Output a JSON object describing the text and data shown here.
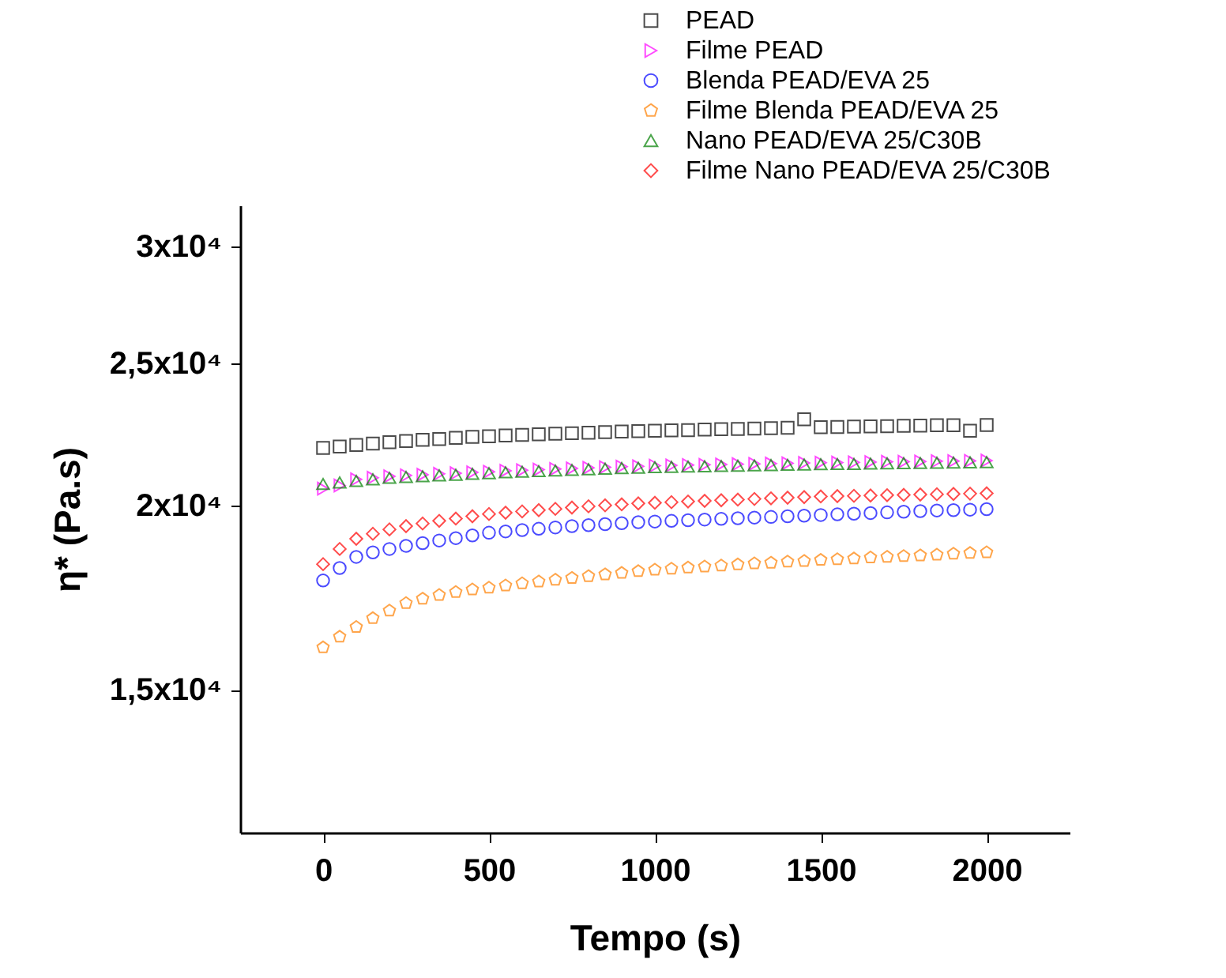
{
  "chart_data": {
    "type": "scatter",
    "xlabel": "Tempo (s)",
    "ylabel": "η* (Pa.s)",
    "log": "y",
    "xlim": [
      -250,
      2250
    ],
    "xticks": [
      0,
      500,
      1000,
      1500,
      2000
    ],
    "ylim": [
      12000,
      32000
    ],
    "yticks": [
      {
        "value": 15000,
        "label": "1,5x10⁴"
      },
      {
        "value": 20000,
        "label": "2x10⁴"
      },
      {
        "value": 25000,
        "label": "2,5x10⁴"
      },
      {
        "value": 30000,
        "label": "3x10⁴"
      }
    ],
    "grid": false,
    "legend": "top right",
    "x": [
      0,
      50,
      100,
      150,
      200,
      250,
      300,
      350,
      400,
      450,
      500,
      550,
      600,
      650,
      700,
      750,
      800,
      850,
      900,
      950,
      1000,
      1050,
      1100,
      1150,
      1200,
      1250,
      1300,
      1350,
      1400,
      1450,
      1500,
      1550,
      1600,
      1650,
      1700,
      1750,
      1800,
      1850,
      1900,
      1950,
      2000
    ],
    "series": [
      {
        "name": "PEAD",
        "color": "#000000",
        "marker": "square",
        "values": [
          21900,
          21950,
          22000,
          22050,
          22100,
          22140,
          22180,
          22210,
          22250,
          22280,
          22300,
          22330,
          22350,
          22370,
          22390,
          22410,
          22430,
          22450,
          22470,
          22480,
          22500,
          22510,
          22520,
          22540,
          22550,
          22560,
          22570,
          22590,
          22600,
          22900,
          22620,
          22630,
          22640,
          22650,
          22660,
          22670,
          22680,
          22690,
          22690,
          22500,
          22700
        ]
      },
      {
        "name": "Filme PEAD",
        "color": "#ff00ff",
        "marker": "triangle-right",
        "values": [
          20550,
          20650,
          20850,
          20900,
          20950,
          20980,
          21000,
          21030,
          21050,
          21080,
          21100,
          21130,
          21150,
          21170,
          21190,
          21210,
          21230,
          21250,
          21270,
          21280,
          21300,
          21310,
          21320,
          21330,
          21340,
          21350,
          21360,
          21370,
          21380,
          21390,
          21400,
          21405,
          21410,
          21420,
          21430,
          21435,
          21440,
          21450,
          21455,
          21460,
          21470
        ]
      },
      {
        "name": "Blenda PEAD/EVA 25",
        "color": "#0000ff",
        "marker": "circle",
        "values": [
          17800,
          18150,
          18470,
          18600,
          18700,
          18790,
          18870,
          18950,
          19020,
          19100,
          19180,
          19220,
          19260,
          19300,
          19340,
          19380,
          19410,
          19440,
          19470,
          19500,
          19520,
          19540,
          19560,
          19580,
          19600,
          19620,
          19640,
          19660,
          19680,
          19700,
          19720,
          19740,
          19760,
          19780,
          19800,
          19820,
          19840,
          19860,
          19870,
          19885,
          19900
        ]
      },
      {
        "name": "Filme Blenda PEAD/EVA 25",
        "color": "#ff8000",
        "values": [
          16030,
          16300,
          16550,
          16780,
          16980,
          17180,
          17300,
          17400,
          17480,
          17550,
          17600,
          17660,
          17720,
          17770,
          17820,
          17870,
          17920,
          17970,
          18010,
          18060,
          18100,
          18130,
          18160,
          18190,
          18220,
          18250,
          18280,
          18300,
          18330,
          18350,
          18380,
          18400,
          18420,
          18450,
          18470,
          18490,
          18510,
          18530,
          18560,
          18580,
          18600
        ]
      },
      {
        "name": "Nano PEAD/EVA 25/C30B",
        "color": "#008000",
        "marker": "triangle",
        "values": [
          20700,
          20750,
          20800,
          20850,
          20900,
          20930,
          20950,
          20980,
          21000,
          21030,
          21050,
          21080,
          21100,
          21120,
          21140,
          21160,
          21180,
          21200,
          21220,
          21230,
          21250,
          21260,
          21270,
          21280,
          21290,
          21300,
          21310,
          21320,
          21330,
          21340,
          21350,
          21355,
          21360,
          21370,
          21380,
          21385,
          21390,
          21400,
          21405,
          21410,
          21420
        ]
      },
      {
        "name": "Filme Nano PEAD/EVA 25/C30B",
        "color": "#ff0000",
        "marker": "diamond",
        "values": [
          18260,
          18700,
          19000,
          19150,
          19280,
          19380,
          19460,
          19540,
          19610,
          19680,
          19750,
          19790,
          19830,
          19870,
          19910,
          19950,
          19990,
          20020,
          20050,
          20080,
          20100,
          20120,
          20140,
          20160,
          20180,
          20200,
          20220,
          20240,
          20260,
          20280,
          20300,
          20310,
          20320,
          20330,
          20340,
          20350,
          20360,
          20370,
          20380,
          20390,
          20400
        ]
      }
    ]
  }
}
